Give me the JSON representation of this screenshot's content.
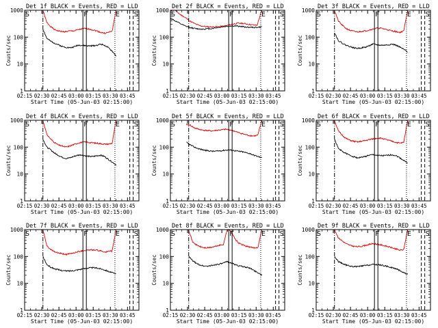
{
  "colors": {
    "black_series": "#000000",
    "red_series": "#e00000",
    "background": "#ffffff"
  },
  "shared": {
    "xlabel": "Start Time (05-Jun-03 02:15:00)",
    "ylabel": "Counts/sec",
    "x_ticks": [
      "02:15",
      "02:30",
      "02:45",
      "03:00",
      "03:15",
      "03:30",
      "03:45"
    ],
    "y_ticks": [
      "1",
      "10",
      "100",
      "1000"
    ],
    "xlim_minutes_after_start": [
      0,
      100
    ],
    "ylim": [
      1,
      1000
    ],
    "y_scale": "log",
    "markers": [
      {
        "label": "S",
        "minutes": 0,
        "style": "none"
      },
      {
        "label": "",
        "minutes": 16,
        "style": "dash-dot"
      },
      {
        "label": "F",
        "minutes": 51,
        "style": "solid"
      },
      {
        "label": "",
        "minutes": 54,
        "style": "solid"
      },
      {
        "label": "E",
        "minutes": 79,
        "style": "dotted"
      },
      {
        "label": "",
        "minutes": 92,
        "style": "dashed"
      },
      {
        "label": "S",
        "minutes": 95,
        "style": "dashed"
      }
    ]
  },
  "chart_data": [
    {
      "type": "line",
      "title": "Det 1f BLACK = Events, RED = LLD",
      "x_start": "02:31",
      "x_end": "03:35",
      "series": [
        {
          "color": "red",
          "values": [
            1000,
            350,
            250,
            190,
            170,
            160,
            160,
            170,
            170,
            185,
            200,
            210,
            200,
            185,
            170,
            150,
            140,
            150,
            170,
            1000
          ]
        },
        {
          "color": "black",
          "values": [
            200,
            90,
            70,
            60,
            52,
            45,
            42,
            40,
            43,
            50,
            50,
            48,
            47,
            48,
            50,
            55,
            50,
            40,
            30,
            20
          ]
        }
      ]
    },
    {
      "type": "line",
      "title": "Det 2f BLACK = Events, RED = LLD",
      "x_start": "02:15",
      "x_end": "03:35",
      "series": [
        {
          "color": "red",
          "values": [
            1000,
            1000,
            700,
            550,
            400,
            320,
            270,
            250,
            240,
            240,
            245,
            255,
            275,
            305,
            330,
            325,
            305,
            285,
            275,
            1000
          ]
        },
        {
          "color": "black",
          "values": [
            500,
            400,
            320,
            260,
            230,
            210,
            200,
            200,
            205,
            215,
            230,
            245,
            255,
            260,
            255,
            245,
            235,
            230,
            230,
            240
          ]
        }
      ]
    },
    {
      "type": "line",
      "title": "Det 3f BLACK = Events, RED = LLD",
      "x_start": "02:31",
      "x_end": "03:35",
      "series": [
        {
          "color": "red",
          "values": [
            1000,
            400,
            280,
            210,
            180,
            165,
            155,
            165,
            170,
            185,
            200,
            215,
            215,
            200,
            185,
            170,
            160,
            150,
            170,
            1000
          ]
        },
        {
          "color": "black",
          "values": [
            150,
            75,
            60,
            50,
            45,
            40,
            38,
            40,
            42,
            48,
            55,
            52,
            50,
            50,
            52,
            55,
            50,
            42,
            35,
            28
          ]
        }
      ]
    },
    {
      "type": "line",
      "title": "Det 4f BLACK = Events, RED = LLD",
      "x_start": "02:31",
      "x_end": "03:35",
      "series": [
        {
          "color": "red",
          "values": [
            1000,
            300,
            200,
            150,
            120,
            110,
            100,
            110,
            125,
            140,
            150,
            155,
            150,
            145,
            140,
            135,
            130,
            130,
            140,
            1000
          ]
        },
        {
          "color": "black",
          "values": [
            200,
            100,
            80,
            60,
            50,
            42,
            38,
            40,
            45,
            50,
            52,
            48,
            45,
            45,
            48,
            50,
            45,
            35,
            28,
            22
          ]
        }
      ]
    },
    {
      "type": "line",
      "title": "Det 5f BLACK = Events, RED = LLD",
      "x_start": "02:29",
      "x_end": "03:35",
      "series": [
        {
          "color": "red",
          "values": [
            700,
            650,
            520,
            470,
            430,
            420,
            400,
            410,
            430,
            440,
            460,
            440,
            400,
            350,
            320,
            290,
            270,
            260,
            280,
            1000
          ]
        },
        {
          "color": "black",
          "values": [
            150,
            120,
            100,
            88,
            80,
            75,
            72,
            70,
            72,
            75,
            78,
            78,
            75,
            70,
            68,
            62,
            58,
            50,
            45,
            40
          ]
        }
      ]
    },
    {
      "type": "line",
      "title": "Det 6f BLACK = Events, RED = LLD",
      "x_start": "02:31",
      "x_end": "03:35",
      "series": [
        {
          "color": "red",
          "values": [
            1000,
            400,
            280,
            210,
            180,
            165,
            155,
            165,
            175,
            190,
            200,
            215,
            215,
            200,
            180,
            165,
            150,
            140,
            150,
            1000
          ]
        },
        {
          "color": "black",
          "values": [
            200,
            90,
            70,
            58,
            50,
            44,
            40,
            42,
            45,
            50,
            52,
            50,
            48,
            48,
            50,
            52,
            48,
            40,
            32,
            26
          ]
        }
      ]
    },
    {
      "type": "line",
      "title": "Det 7f BLACK = Events, RED = LLD",
      "x_start": "02:31",
      "x_end": "03:35",
      "series": [
        {
          "color": "red",
          "values": [
            1000,
            250,
            180,
            150,
            135,
            125,
            120,
            125,
            135,
            150,
            160,
            170,
            175,
            175,
            170,
            160,
            150,
            150,
            160,
            1000
          ]
        },
        {
          "color": "black",
          "values": [
            100,
            50,
            40,
            35,
            32,
            30,
            29,
            29,
            30,
            32,
            34,
            36,
            38,
            38,
            37,
            35,
            32,
            28,
            25,
            22
          ]
        }
      ]
    },
    {
      "type": "line",
      "title": "Det 8f BLACK = Events, RED = LLD",
      "x_start": "02:31",
      "x_end": "03:35",
      "series": [
        {
          "color": "red",
          "values": [
            1000,
            350,
            270,
            230,
            210,
            210,
            220,
            240,
            260,
            280,
            1000,
            900,
            450,
            310,
            270,
            240,
            220,
            210,
            220,
            1000
          ]
        },
        {
          "color": "black",
          "values": [
            100,
            70,
            55,
            48,
            44,
            44,
            46,
            50,
            52,
            56,
            65,
            58,
            50,
            45,
            42,
            40,
            36,
            30,
            25,
            20
          ]
        }
      ]
    },
    {
      "type": "line",
      "title": "Det 9f BLACK = Events, RED = LLD",
      "x_start": "02:31",
      "x_end": "03:35",
      "series": [
        {
          "color": "red",
          "values": [
            1000,
            500,
            380,
            300,
            260,
            240,
            230,
            240,
            260,
            280,
            300,
            290,
            270,
            250,
            230,
            210,
            190,
            170,
            180,
            1000
          ]
        },
        {
          "color": "black",
          "values": [
            100,
            65,
            55,
            48,
            44,
            42,
            42,
            44,
            46,
            48,
            50,
            50,
            48,
            45,
            42,
            38,
            35,
            30,
            25,
            22
          ]
        }
      ]
    }
  ]
}
